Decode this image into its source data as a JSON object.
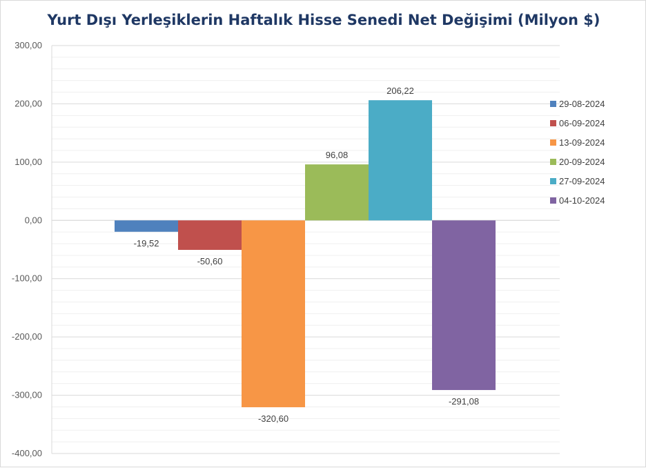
{
  "chart_data": {
    "type": "bar",
    "title": "Yurt Dışı Yerleşiklerin Haftalık Hisse Senedi Net Değişimi (Milyon $)",
    "xlabel": "",
    "ylabel": "",
    "ylim": [
      -400,
      300
    ],
    "y_ticks": [
      300,
      200,
      100,
      0,
      -100,
      -200,
      -300,
      -400
    ],
    "y_tick_labels": [
      "300,00",
      "200,00",
      "100,00",
      "0,00",
      "-100,00",
      "-200,00",
      "-300,00",
      "-400,00"
    ],
    "grid": true,
    "legend_position": "right",
    "series": [
      {
        "name": "29-08-2024",
        "value": -19.52,
        "label": "-19,52",
        "color": "#4f81bd"
      },
      {
        "name": "06-09-2024",
        "value": -50.6,
        "label": "-50,60",
        "color": "#c0504d"
      },
      {
        "name": "13-09-2024",
        "value": -320.6,
        "label": "-320,60",
        "color": "#f79646"
      },
      {
        "name": "20-09-2024",
        "value": 96.08,
        "label": "96,08",
        "color": "#9bbb59"
      },
      {
        "name": "27-09-2024",
        "value": 206.22,
        "label": "206,22",
        "color": "#4bacc6"
      },
      {
        "name": "04-10-2024",
        "value": -291.08,
        "label": "-291,08",
        "color": "#8064a2"
      }
    ]
  }
}
